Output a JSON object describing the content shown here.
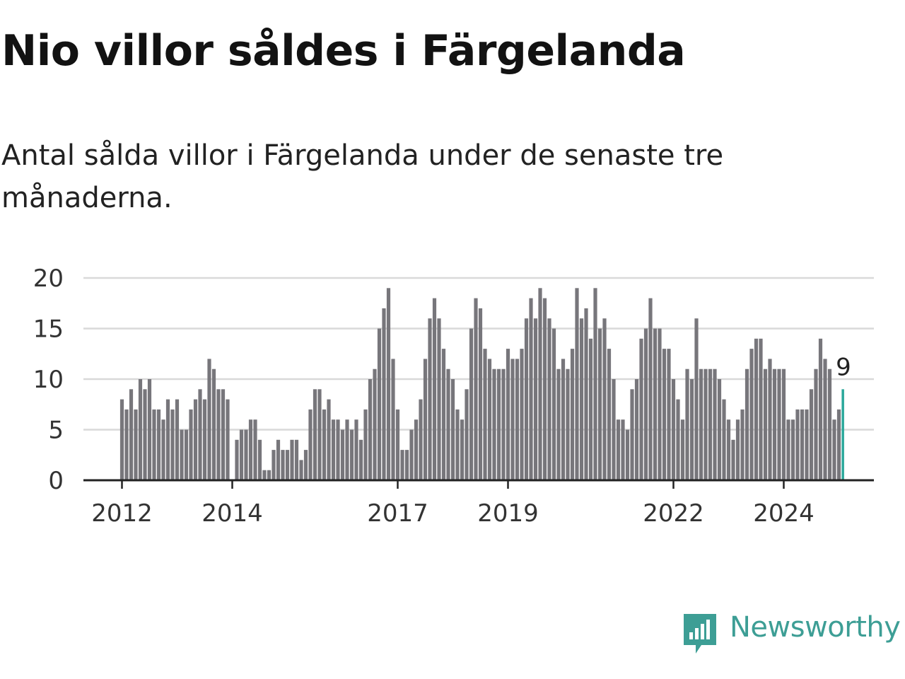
{
  "title": "Nio villor såldes i Färgelanda",
  "subtitle": "Antal sålda villor i Färgelanda under de senaste tre månaderna.",
  "brand": {
    "name": "Newsworthy",
    "color": "#3d9e95",
    "icon": "newsworthy-logo-icon"
  },
  "colors": {
    "bar": "#77767b",
    "highlight": "#2aa89b",
    "grid": "#d9d9d9",
    "axis": "#222222"
  },
  "chart_data": {
    "type": "bar",
    "x_start": "2012-01",
    "x_interval": "month",
    "ylim": [
      0,
      20
    ],
    "yticks": [
      0,
      5,
      10,
      15,
      20
    ],
    "xticks": [
      {
        "label": "2012",
        "month": "2012-01"
      },
      {
        "label": "2014",
        "month": "2014-01"
      },
      {
        "label": "2017",
        "month": "2017-01"
      },
      {
        "label": "2019",
        "month": "2019-01"
      },
      {
        "label": "2022",
        "month": "2022-01"
      },
      {
        "label": "2024",
        "month": "2024-01"
      }
    ],
    "values": [
      8,
      7,
      9,
      7,
      10,
      9,
      10,
      7,
      7,
      6,
      8,
      7,
      8,
      5,
      5,
      7,
      8,
      9,
      8,
      12,
      11,
      9,
      9,
      8,
      0,
      4,
      5,
      5,
      6,
      6,
      4,
      1,
      1,
      3,
      4,
      3,
      3,
      4,
      4,
      2,
      3,
      7,
      9,
      9,
      7,
      8,
      6,
      6,
      5,
      6,
      5,
      6,
      4,
      7,
      10,
      11,
      15,
      17,
      19,
      12,
      7,
      3,
      3,
      5,
      6,
      8,
      12,
      16,
      18,
      16,
      13,
      11,
      10,
      7,
      6,
      9,
      15,
      18,
      17,
      13,
      12,
      11,
      11,
      11,
      13,
      12,
      12,
      13,
      16,
      18,
      16,
      19,
      18,
      16,
      15,
      11,
      12,
      11,
      13,
      19,
      16,
      17,
      14,
      19,
      15,
      16,
      13,
      10,
      6,
      6,
      5,
      9,
      10,
      14,
      15,
      18,
      15,
      15,
      13,
      13,
      10,
      8,
      6,
      11,
      10,
      16,
      11,
      11,
      11,
      11,
      10,
      8,
      6,
      4,
      6,
      7,
      11,
      13,
      14,
      14,
      11,
      12,
      11,
      11,
      11,
      6,
      6,
      7,
      7,
      7,
      9,
      11,
      14,
      12,
      11,
      6,
      7,
      9
    ],
    "highlight_last": true,
    "annotation": {
      "label": "9"
    }
  }
}
